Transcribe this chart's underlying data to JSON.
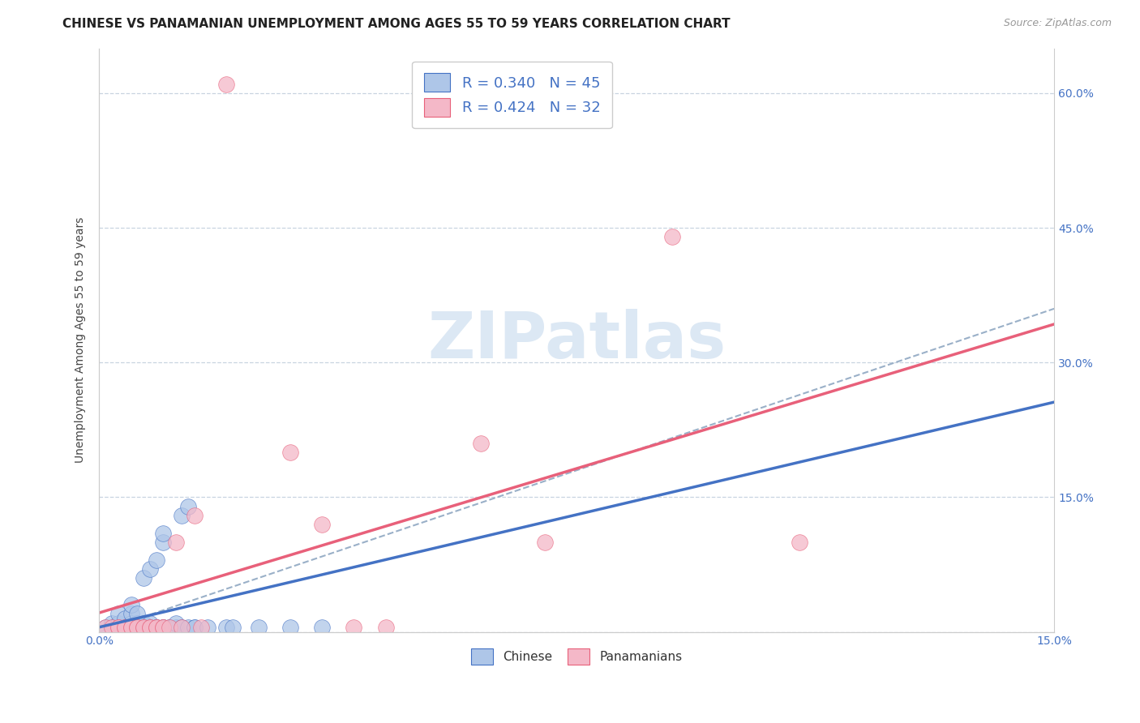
{
  "title": "CHINESE VS PANAMANIAN UNEMPLOYMENT AMONG AGES 55 TO 59 YEARS CORRELATION CHART",
  "source": "Source: ZipAtlas.com",
  "ylabel": "Unemployment Among Ages 55 to 59 years",
  "xlim": [
    0.0,
    0.15
  ],
  "ylim": [
    0.0,
    0.65
  ],
  "xticks": [
    0.0,
    0.03,
    0.06,
    0.09,
    0.12,
    0.15
  ],
  "xticklabels": [
    "0.0%",
    "",
    "",
    "",
    "",
    "15.0%"
  ],
  "yticks": [
    0.0,
    0.15,
    0.3,
    0.45,
    0.6
  ],
  "yticklabels_right": [
    "",
    "15.0%",
    "30.0%",
    "45.0%",
    "60.0%"
  ],
  "chinese_R": 0.34,
  "chinese_N": 45,
  "panamanian_R": 0.424,
  "panamanian_N": 32,
  "chinese_color": "#aec6e8",
  "panamanian_color": "#f4b8c8",
  "chinese_line_color": "#4472c4",
  "panamanian_line_color": "#e8607a",
  "trendline_color": "#9ab0c8",
  "chinese_points": [
    [
      0.001,
      0.005
    ],
    [
      0.002,
      0.005
    ],
    [
      0.002,
      0.01
    ],
    [
      0.003,
      0.005
    ],
    [
      0.003,
      0.01
    ],
    [
      0.003,
      0.02
    ],
    [
      0.004,
      0.005
    ],
    [
      0.004,
      0.005
    ],
    [
      0.004,
      0.015
    ],
    [
      0.005,
      0.005
    ],
    [
      0.005,
      0.01
    ],
    [
      0.005,
      0.02
    ],
    [
      0.005,
      0.03
    ],
    [
      0.006,
      0.005
    ],
    [
      0.006,
      0.01
    ],
    [
      0.006,
      0.02
    ],
    [
      0.007,
      0.005
    ],
    [
      0.007,
      0.01
    ],
    [
      0.007,
      0.06
    ],
    [
      0.008,
      0.005
    ],
    [
      0.008,
      0.01
    ],
    [
      0.008,
      0.07
    ],
    [
      0.009,
      0.005
    ],
    [
      0.009,
      0.005
    ],
    [
      0.009,
      0.08
    ],
    [
      0.01,
      0.005
    ],
    [
      0.01,
      0.005
    ],
    [
      0.01,
      0.1
    ],
    [
      0.01,
      0.11
    ],
    [
      0.011,
      0.005
    ],
    [
      0.011,
      0.005
    ],
    [
      0.012,
      0.005
    ],
    [
      0.012,
      0.01
    ],
    [
      0.013,
      0.005
    ],
    [
      0.013,
      0.13
    ],
    [
      0.014,
      0.005
    ],
    [
      0.014,
      0.14
    ],
    [
      0.015,
      0.005
    ],
    [
      0.015,
      0.005
    ],
    [
      0.017,
      0.005
    ],
    [
      0.02,
      0.005
    ],
    [
      0.021,
      0.005
    ],
    [
      0.025,
      0.005
    ],
    [
      0.03,
      0.005
    ],
    [
      0.035,
      0.005
    ]
  ],
  "panamanian_points": [
    [
      0.001,
      0.005
    ],
    [
      0.002,
      0.005
    ],
    [
      0.003,
      0.005
    ],
    [
      0.003,
      0.005
    ],
    [
      0.004,
      0.005
    ],
    [
      0.004,
      0.005
    ],
    [
      0.005,
      0.005
    ],
    [
      0.005,
      0.005
    ],
    [
      0.006,
      0.005
    ],
    [
      0.006,
      0.005
    ],
    [
      0.007,
      0.005
    ],
    [
      0.007,
      0.005
    ],
    [
      0.008,
      0.005
    ],
    [
      0.008,
      0.005
    ],
    [
      0.009,
      0.005
    ],
    [
      0.009,
      0.005
    ],
    [
      0.01,
      0.005
    ],
    [
      0.01,
      0.005
    ],
    [
      0.011,
      0.005
    ],
    [
      0.012,
      0.1
    ],
    [
      0.013,
      0.005
    ],
    [
      0.015,
      0.13
    ],
    [
      0.016,
      0.005
    ],
    [
      0.02,
      0.61
    ],
    [
      0.03,
      0.2
    ],
    [
      0.035,
      0.12
    ],
    [
      0.04,
      0.005
    ],
    [
      0.045,
      0.005
    ],
    [
      0.06,
      0.21
    ],
    [
      0.07,
      0.1
    ],
    [
      0.09,
      0.44
    ],
    [
      0.11,
      0.1
    ]
  ],
  "background_color": "#ffffff",
  "grid_color": "#c8d4e0",
  "watermark_text": "ZIPatlas",
  "watermark_color": "#dce8f4",
  "title_fontsize": 11,
  "axis_label_fontsize": 10,
  "tick_fontsize": 10,
  "legend_fontsize": 13
}
